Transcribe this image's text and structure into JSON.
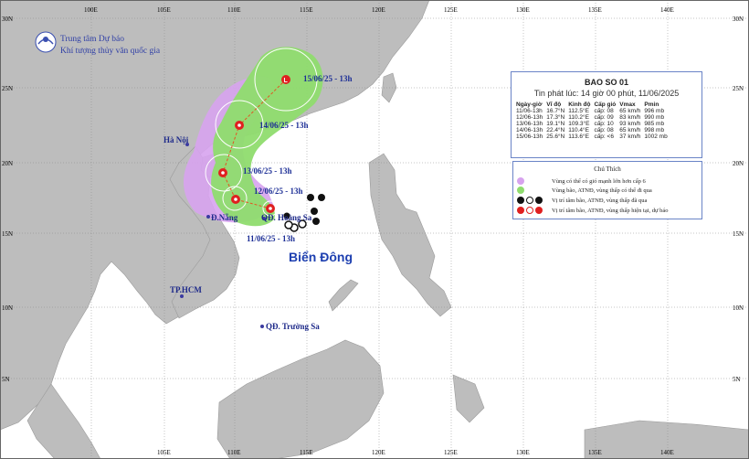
{
  "header": {
    "org_line1": "Trung tâm Dự báo",
    "org_line2": "Khí tượng thủy văn quốc gia"
  },
  "grid": {
    "lon_labels": [
      "100E",
      "105E",
      "110E",
      "115E",
      "120E",
      "125E",
      "130E",
      "135E",
      "140E"
    ],
    "lat_labels": [
      "30N",
      "25N",
      "20N",
      "15N",
      "10N",
      "5N"
    ]
  },
  "places": {
    "hanoi": "Hà Nội",
    "danang": "Đ.Nẵng",
    "hoangsa": "QĐ. Hoàng Sa",
    "hcm": "TP.HCM",
    "truongsa": "QĐ. Trường Sa",
    "sea": "Biển Đông"
  },
  "track_labels": {
    "t1": "11/06/25 - 13h",
    "t2": "12/06/25 - 13h",
    "t3": "13/06/25 - 13h",
    "t4": "14/06/25 - 13h",
    "t5": "15/06/25 - 13h"
  },
  "bulletin": {
    "title": "BAO SO 01",
    "issued": "Tin phát lúc: 14 giờ 00 phút, 11/06/2025",
    "columns": [
      "Ngày-giờ",
      "Vĩ độ",
      "Kinh độ",
      "Cấp gió",
      "Vmax",
      "Pmin"
    ],
    "rows": [
      [
        "11/06-13h",
        "16.7°N",
        "112.5°E",
        "cấp: 08",
        "65 km/h",
        "996 mb"
      ],
      [
        "12/06-13h",
        "17.3°N",
        "110.2°E",
        "cấp: 09",
        "83 km/h",
        "990 mb"
      ],
      [
        "13/06-13h",
        "19.1°N",
        "109.3°E",
        "cấp: 10",
        "93 km/h",
        "985 mb"
      ],
      [
        "14/06-13h",
        "22.4°N",
        "110.4°E",
        "cấp: 08",
        "65 km/h",
        "998 mb"
      ],
      [
        "15/06-13h",
        "25.6°N",
        "113.6°E",
        "cấp: <6",
        "37 km/h",
        "1002 mb"
      ]
    ]
  },
  "legend": {
    "title": "Chú Thích",
    "items": [
      "Vùng có thể có gió mạnh lớn hơn cấp 6",
      "Vùng bão, ATNĐ, vùng thấp có thể đi qua",
      "Vị trí tâm bão, ATNĐ, vùng thấp đã qua",
      "Vị trí tâm bão, ATNĐ, vùng thấp hiện tại, dự báo"
    ],
    "colors": {
      "strong_wind_zone": "#d7a3ee",
      "storm_zone": "#8fdc6e",
      "past_position": "#111111",
      "forecast_position": "#e02020"
    }
  }
}
